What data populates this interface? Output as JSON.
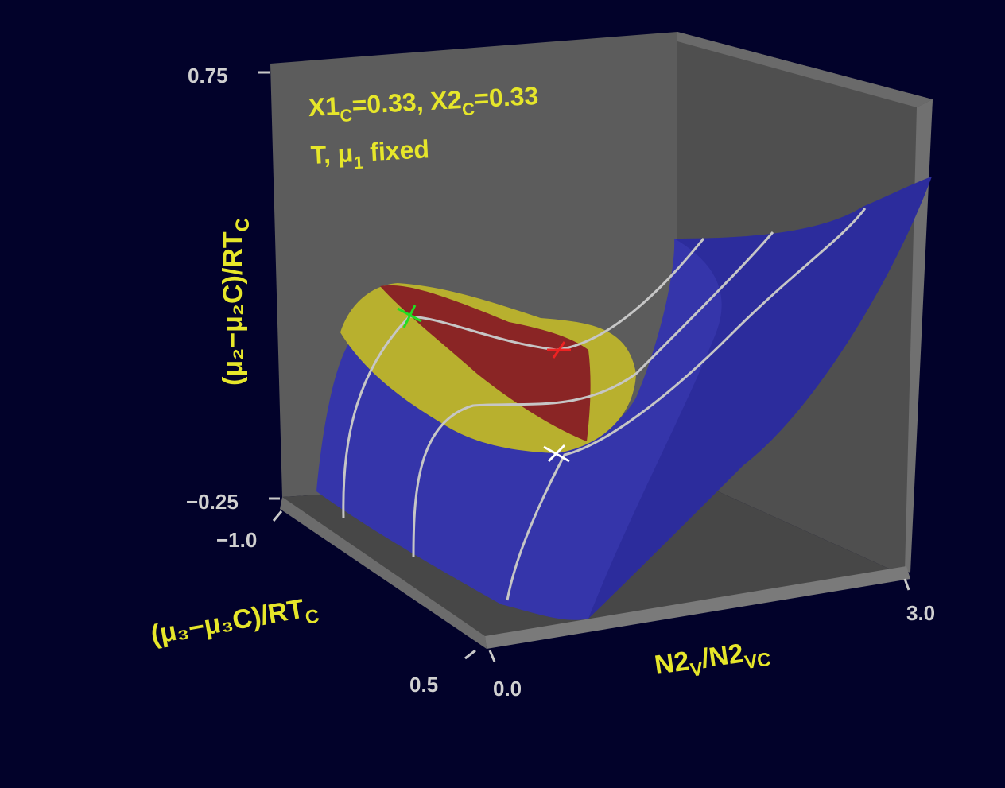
{
  "figure": {
    "annotation_line1": {
      "prefix": "X1",
      "sub1": "C",
      "mid": "=0.33,  X2",
      "sub2": "C",
      "suffix": "=0.33"
    },
    "annotation_line2": {
      "prefix": "T,  μ",
      "sub": "1",
      "suffix": "  fixed"
    },
    "z_axis": {
      "label_main": "(μ₂−μ₂C)/RT",
      "label_sub": "C",
      "tick_top": "0.75",
      "tick_bottom": "−0.25",
      "range": [
        -0.25,
        0.75
      ]
    },
    "y_axis": {
      "label_main": "(μ₃−μ₃C)/RT",
      "label_sub": "C",
      "tick_back": "−1.0",
      "tick_front": "0.5",
      "range": [
        -1.0,
        0.5
      ]
    },
    "x_axis": {
      "label_main": "N2",
      "label_sub1": "V",
      "label_mid": "/N2",
      "label_sub2": "VC",
      "tick_left": "0.0",
      "tick_right": "3.0",
      "range": [
        0.0,
        3.0
      ]
    },
    "colors": {
      "background": "#02022a",
      "box_wall": "#5a5a5a",
      "box_floor": "#4e4e4e",
      "box_edge": "#6e6e6e",
      "surface": "#3232a8",
      "region_outer": "#b8b02e",
      "region_inner": "#8a2424",
      "contour": "#c0c0c0",
      "label": "#e6e62a",
      "tick_text": "#d0d0d0",
      "marker_green": "#22dd22",
      "marker_red": "#ee2222",
      "marker_white": "#ffffff"
    }
  }
}
